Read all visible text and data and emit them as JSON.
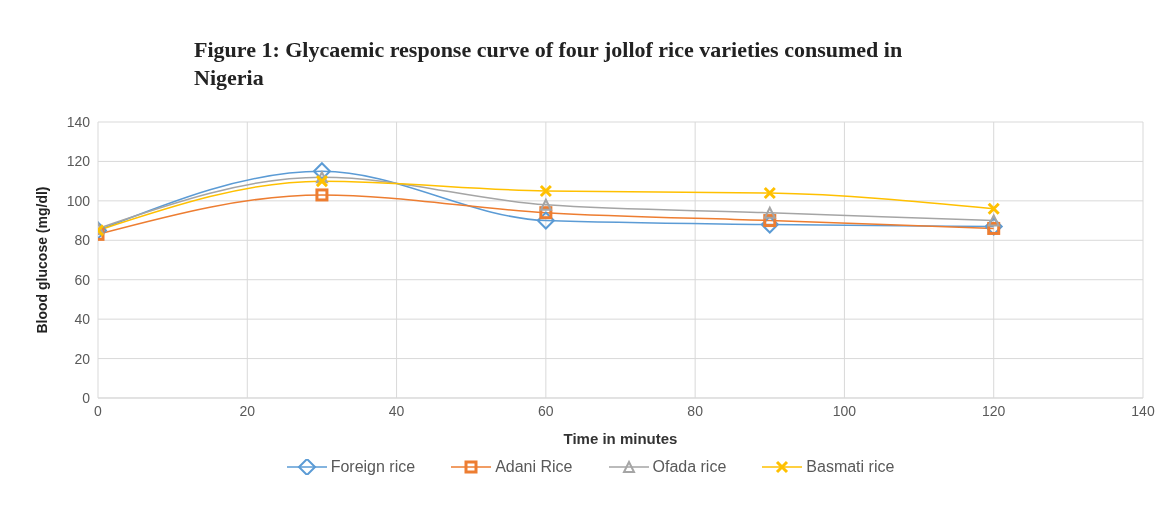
{
  "chart_data": {
    "type": "line",
    "title": "Figure 1: Glycaemic response curve of four jollof rice varieties consumed in Nigeria",
    "xlabel": "Time in minutes",
    "ylabel": "Blood glucose (mg/dl)",
    "x": [
      0,
      30,
      60,
      90,
      120
    ],
    "series": [
      {
        "name": "Foreign rice",
        "color": "#5b9bd5",
        "marker": "diamond",
        "values": [
          85,
          115,
          90,
          88,
          87
        ]
      },
      {
        "name": "Adani Rice",
        "color": "#ed7d31",
        "marker": "square",
        "values": [
          83,
          103,
          94,
          90,
          86
        ]
      },
      {
        "name": "Ofada rice",
        "color": "#a5a5a5",
        "marker": "triangle",
        "values": [
          86,
          112,
          98,
          94,
          90
        ]
      },
      {
        "name": "Basmati rice",
        "color": "#ffc000",
        "marker": "cross",
        "values": [
          85,
          110,
          105,
          104,
          96
        ]
      }
    ],
    "xlim": [
      0,
      140
    ],
    "xticks": [
      0,
      20,
      40,
      60,
      80,
      100,
      120,
      140
    ],
    "ylim": [
      0,
      140
    ],
    "yticks": [
      0,
      20,
      40,
      60,
      80,
      100,
      120,
      140
    ],
    "grid": true,
    "legend": "bottom"
  }
}
